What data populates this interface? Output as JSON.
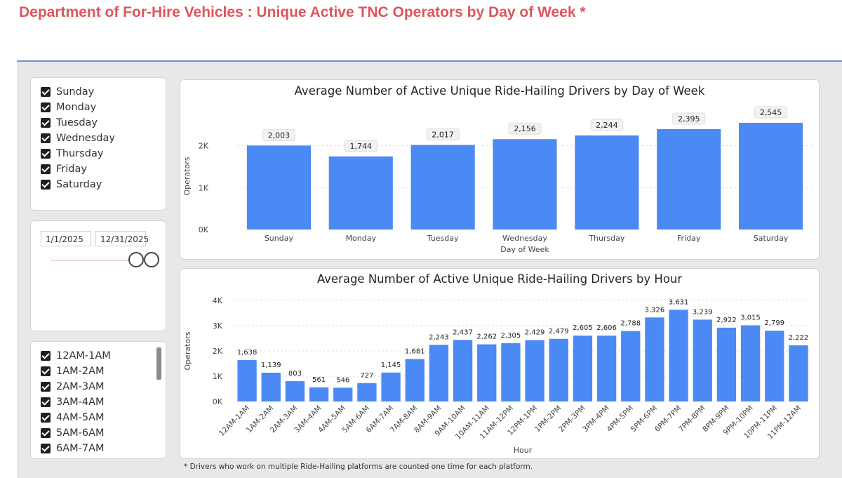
{
  "page": {
    "title": "Department of For-Hire Vehicles : Unique Active TNC Operators by Day of Week *",
    "footnote": "* Drivers who work on multiple Ride-Hailing platforms are counted one time for each platform."
  },
  "colors": {
    "bar": "#4b89f5",
    "title": "#e0555a",
    "header_line": "#6e8fd8"
  },
  "day_slicer": {
    "items": [
      {
        "label": "Sunday",
        "checked": true
      },
      {
        "label": "Monday",
        "checked": true
      },
      {
        "label": "Tuesday",
        "checked": true
      },
      {
        "label": "Wednesday",
        "checked": true
      },
      {
        "label": "Thursday",
        "checked": true
      },
      {
        "label": "Friday",
        "checked": true
      },
      {
        "label": "Saturday",
        "checked": true
      }
    ]
  },
  "date_slicer": {
    "start": "1/1/2025",
    "end": "12/31/2025"
  },
  "hour_slicer": {
    "items": [
      {
        "label": "12AM-1AM",
        "checked": true
      },
      {
        "label": "1AM-2AM",
        "checked": true
      },
      {
        "label": "2AM-3AM",
        "checked": true
      },
      {
        "label": "3AM-4AM",
        "checked": true
      },
      {
        "label": "4AM-5AM",
        "checked": true
      },
      {
        "label": "5AM-6AM",
        "checked": true
      },
      {
        "label": "6AM-7AM",
        "checked": true
      }
    ]
  },
  "chart_data": [
    {
      "type": "bar",
      "title": "Average Number of Active Unique Ride-Hailing Drivers by Day of Week",
      "xlabel": "Day of Week",
      "ylabel": "Operators",
      "categories": [
        "Sunday",
        "Monday",
        "Tuesday",
        "Wednesday",
        "Thursday",
        "Friday",
        "Saturday"
      ],
      "values": [
        2003,
        1744,
        2017,
        2156,
        2244,
        2395,
        2545
      ],
      "data_labels": [
        "2,003",
        "1,744",
        "2,017",
        "2,156",
        "2,244",
        "2,395",
        "2,545"
      ],
      "ylim": [
        0,
        2545
      ],
      "yticks": [
        0,
        1000,
        2000
      ],
      "ytick_labels": [
        "0K",
        "1K",
        "2K"
      ],
      "grid": true
    },
    {
      "type": "bar",
      "title": "Average Number of Active Unique Ride-Hailing Drivers by Hour",
      "xlabel": "Hour",
      "ylabel": "Operators",
      "categories": [
        "12AM-1AM",
        "1AM-2AM",
        "2AM-3AM",
        "3AM-4AM",
        "4AM-5AM",
        "5AM-6AM",
        "6AM-7AM",
        "7AM-8AM",
        "8AM-9AM",
        "9AM-10AM",
        "10AM-11AM",
        "11AM-12PM",
        "12PM-1PM",
        "1PM-2PM",
        "2PM-3PM",
        "3PM-4PM",
        "4PM-5PM",
        "5PM-6PM",
        "6PM-7PM",
        "7PM-8PM",
        "8PM-9PM",
        "9PM-10PM",
        "10PM-11PM",
        "11PM-12AM"
      ],
      "values": [
        1638,
        1139,
        803,
        561,
        546,
        727,
        1145,
        1681,
        2243,
        2437,
        2262,
        2305,
        2429,
        2479,
        2605,
        2606,
        2788,
        3326,
        3631,
        3239,
        2922,
        3015,
        2799,
        2222
      ],
      "data_labels": [
        "1,638",
        "1,139",
        "803",
        "561",
        "546",
        "727",
        "1,145",
        "1,681",
        "2,243",
        "2,437",
        "2,262",
        "2,305",
        "2,429",
        "2,479",
        "2,605",
        "2,606",
        "2,788",
        "3,326",
        "3,631",
        "3,239",
        "2,922",
        "3,015",
        "2,799",
        "2,222"
      ],
      "ylim": [
        0,
        4000
      ],
      "yticks": [
        0,
        1000,
        2000,
        3000,
        4000
      ],
      "ytick_labels": [
        "0K",
        "1K",
        "2K",
        "3K",
        "4K"
      ],
      "grid": true
    }
  ]
}
